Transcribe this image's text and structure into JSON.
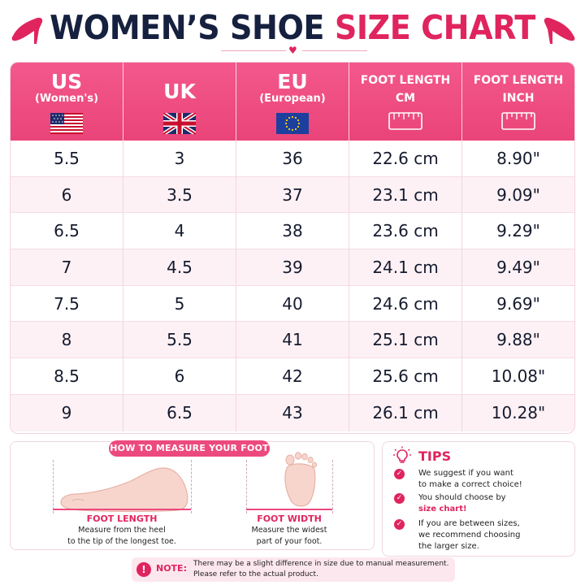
{
  "title": {
    "part1": "WOMEN’S SHOE",
    "part2": "SIZE CHART"
  },
  "colors": {
    "accent": "#e0245e",
    "header_bg": "#ef4f84",
    "navy": "#16203f"
  },
  "table": {
    "headers": [
      {
        "main": "US",
        "sub": "(Women's)",
        "icon": "us-flag-icon"
      },
      {
        "main": "UK",
        "sub": "",
        "icon": "uk-flag-icon"
      },
      {
        "main": "EU",
        "sub": "(European)",
        "icon": "eu-flag-icon"
      },
      {
        "line1": "FOOT LENGTH",
        "line2": "CM",
        "icon": "ruler-icon"
      },
      {
        "line1": "FOOT LENGTH",
        "line2": "INCH",
        "icon": "ruler-icon"
      }
    ],
    "rows": [
      [
        "5.5",
        "3",
        "36",
        "22.6 cm",
        "8.90\""
      ],
      [
        "6",
        "3.5",
        "37",
        "23.1 cm",
        "9.09\""
      ],
      [
        "6.5",
        "4",
        "38",
        "23.6 cm",
        "9.29\""
      ],
      [
        "7",
        "4.5",
        "39",
        "24.1 cm",
        "9.49\""
      ],
      [
        "7.5",
        "5",
        "40",
        "24.6 cm",
        "9.69\""
      ],
      [
        "8",
        "5.5",
        "41",
        "25.1 cm",
        "9.88\""
      ],
      [
        "8.5",
        "6",
        "42",
        "25.6 cm",
        "10.08\""
      ],
      [
        "9",
        "6.5",
        "43",
        "26.1 cm",
        "10.28\""
      ]
    ]
  },
  "measure": {
    "badge": "HOW TO MEASURE YOUR FOOT",
    "length_title": "FOOT LENGTH",
    "length_desc1": "Measure from the heel",
    "length_desc2": "to the tip of the longest toe.",
    "width_title": "FOOT WIDTH",
    "width_desc1": "Measure the widest",
    "width_desc2": "part of your foot."
  },
  "tips": {
    "title": "TIPS",
    "items": [
      {
        "line1": "We suggest if you want",
        "line2": "to make a correct choice!",
        "line3": ""
      },
      {
        "line1": "You should choose by",
        "line2": "size chart!",
        "line3": ""
      },
      {
        "line1": "If you are between sizes,",
        "line2": "we recommend choosing",
        "line3": "the larger size."
      }
    ]
  },
  "note": {
    "label": "NOTE:",
    "line1": "There may be a slight difference in size due to manual measurement.",
    "line2": "Please refer to the actual product."
  }
}
